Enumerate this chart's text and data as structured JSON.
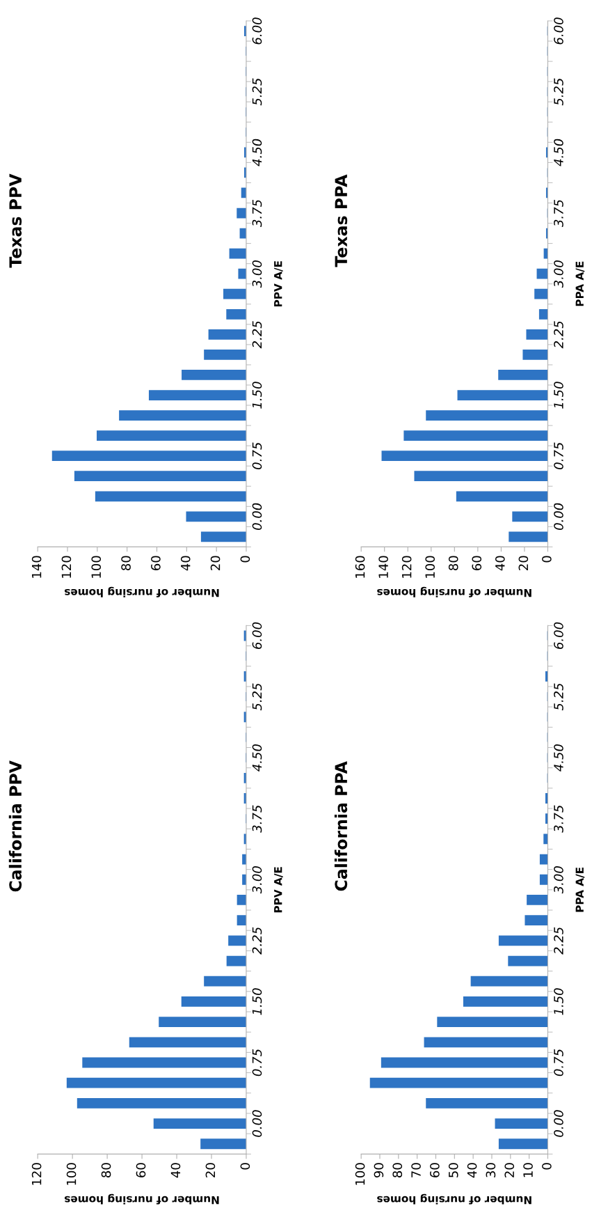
{
  "chart_data": [
    {
      "type": "bar",
      "orientation": "horizontal",
      "title": "Texas PPV",
      "xlabel": "Number of nursing homes",
      "ylabel": "PPV A/E",
      "categories": [
        "6.00",
        null,
        null,
        "5.25",
        null,
        null,
        "4.50",
        null,
        null,
        "3.75",
        null,
        null,
        "3.00",
        null,
        null,
        "2.25",
        null,
        null,
        "1.50",
        null,
        null,
        "0.75",
        null,
        null,
        "0.00",
        null
      ],
      "series": [
        {
          "color": "#2e74c4",
          "values": [
            1,
            0,
            0,
            0,
            0,
            0,
            1,
            1,
            3,
            6,
            4,
            11,
            5,
            15,
            13,
            25,
            28,
            43,
            65,
            85,
            100,
            130,
            115,
            101,
            40,
            30
          ]
        }
      ],
      "xlim": [
        140,
        0
      ],
      "xticks": [
        0,
        20,
        40,
        60,
        80,
        100,
        120,
        140
      ],
      "grid": false
    },
    {
      "type": "bar",
      "orientation": "horizontal",
      "title": "Texas PPA",
      "xlabel": "Number of nursing homes",
      "ylabel": "PPA A/E",
      "categories": [
        "6.00",
        null,
        null,
        "5.25",
        null,
        null,
        "4.50",
        null,
        null,
        "3.75",
        null,
        null,
        "3.00",
        null,
        null,
        "2.25",
        null,
        null,
        "1.50",
        null,
        null,
        "0.75",
        null,
        null,
        "0.00",
        null
      ],
      "series": [
        {
          "color": "#2e74c4",
          "values": [
            0,
            0,
            0,
            0,
            0,
            0,
            1,
            0,
            1,
            0,
            1,
            3,
            9,
            11,
            7,
            18,
            21,
            42,
            77,
            104,
            123,
            142,
            114,
            78,
            30,
            33
          ]
        }
      ],
      "xlim": [
        160,
        0
      ],
      "xticks": [
        0,
        20,
        40,
        60,
        80,
        100,
        120,
        140,
        160
      ],
      "grid": false
    },
    {
      "type": "bar",
      "orientation": "horizontal",
      "title": "California PPV",
      "xlabel": "Number of nursing homes",
      "ylabel": "PPV A/E",
      "categories": [
        "6.00",
        null,
        null,
        "5.25",
        null,
        null,
        "4.50",
        null,
        null,
        "3.75",
        null,
        null,
        "3.00",
        null,
        null,
        "2.25",
        null,
        null,
        "1.50",
        null,
        null,
        "0.75",
        null,
        null,
        "0.00",
        null
      ],
      "series": [
        {
          "color": "#2e74c4",
          "values": [
            1,
            0,
            1,
            0,
            1,
            0,
            0,
            1,
            1,
            0,
            1,
            2,
            2,
            5,
            5,
            10,
            11,
            24,
            37,
            50,
            67,
            94,
            103,
            97,
            53,
            26
          ]
        }
      ],
      "xlim": [
        120,
        0
      ],
      "xticks": [
        0,
        20,
        40,
        60,
        80,
        100,
        120
      ],
      "grid": false
    },
    {
      "type": "bar",
      "orientation": "horizontal",
      "title": "California PPA",
      "xlabel": "Number of nursing homes",
      "ylabel": "PPA A/E",
      "categories": [
        "6.00",
        null,
        null,
        "5.25",
        null,
        null,
        "4.50",
        null,
        null,
        "3.75",
        null,
        null,
        "3.00",
        null,
        null,
        "2.25",
        null,
        null,
        "1.50",
        null,
        null,
        "0.75",
        null,
        null,
        "0.00",
        null
      ],
      "series": [
        {
          "color": "#2e74c4",
          "values": [
            0,
            0,
            1,
            0,
            0,
            0,
            0,
            0,
            1,
            1,
            2,
            4,
            4,
            11,
            12,
            26,
            21,
            41,
            45,
            59,
            66,
            89,
            95,
            65,
            28,
            26
          ]
        }
      ],
      "xlim": [
        100,
        0
      ],
      "xticks": [
        0,
        10,
        20,
        30,
        40,
        50,
        60,
        70,
        80,
        90,
        100
      ],
      "grid": false
    }
  ]
}
